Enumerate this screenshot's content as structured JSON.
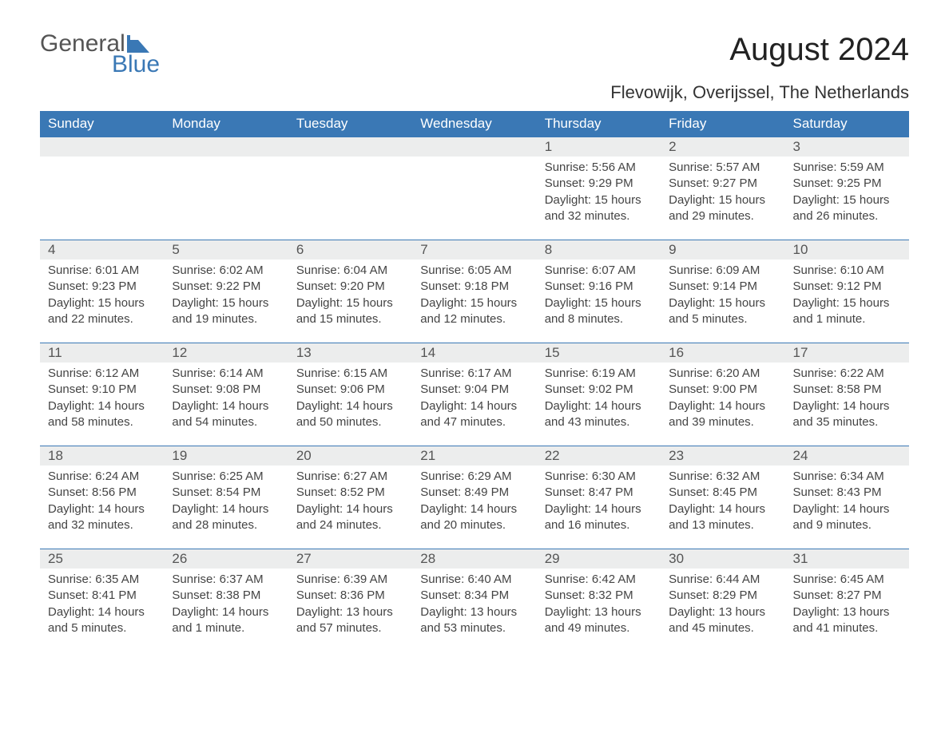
{
  "logo": {
    "word1": "General",
    "word2": "Blue",
    "accent_color": "#3a78b5"
  },
  "title": "August 2024",
  "location": "Flevowijk, Overijssel, The Netherlands",
  "colors": {
    "header_bg": "#3a78b5",
    "header_text": "#ffffff",
    "daynum_bg": "#eceded",
    "text": "#444444",
    "row_border": "#3a78b5"
  },
  "days_of_week": [
    "Sunday",
    "Monday",
    "Tuesday",
    "Wednesday",
    "Thursday",
    "Friday",
    "Saturday"
  ],
  "weeks": [
    [
      null,
      null,
      null,
      null,
      {
        "n": "1",
        "sunrise": "5:56 AM",
        "sunset": "9:29 PM",
        "daylight": "15 hours and 32 minutes."
      },
      {
        "n": "2",
        "sunrise": "5:57 AM",
        "sunset": "9:27 PM",
        "daylight": "15 hours and 29 minutes."
      },
      {
        "n": "3",
        "sunrise": "5:59 AM",
        "sunset": "9:25 PM",
        "daylight": "15 hours and 26 minutes."
      }
    ],
    [
      {
        "n": "4",
        "sunrise": "6:01 AM",
        "sunset": "9:23 PM",
        "daylight": "15 hours and 22 minutes."
      },
      {
        "n": "5",
        "sunrise": "6:02 AM",
        "sunset": "9:22 PM",
        "daylight": "15 hours and 19 minutes."
      },
      {
        "n": "6",
        "sunrise": "6:04 AM",
        "sunset": "9:20 PM",
        "daylight": "15 hours and 15 minutes."
      },
      {
        "n": "7",
        "sunrise": "6:05 AM",
        "sunset": "9:18 PM",
        "daylight": "15 hours and 12 minutes."
      },
      {
        "n": "8",
        "sunrise": "6:07 AM",
        "sunset": "9:16 PM",
        "daylight": "15 hours and 8 minutes."
      },
      {
        "n": "9",
        "sunrise": "6:09 AM",
        "sunset": "9:14 PM",
        "daylight": "15 hours and 5 minutes."
      },
      {
        "n": "10",
        "sunrise": "6:10 AM",
        "sunset": "9:12 PM",
        "daylight": "15 hours and 1 minute."
      }
    ],
    [
      {
        "n": "11",
        "sunrise": "6:12 AM",
        "sunset": "9:10 PM",
        "daylight": "14 hours and 58 minutes."
      },
      {
        "n": "12",
        "sunrise": "6:14 AM",
        "sunset": "9:08 PM",
        "daylight": "14 hours and 54 minutes."
      },
      {
        "n": "13",
        "sunrise": "6:15 AM",
        "sunset": "9:06 PM",
        "daylight": "14 hours and 50 minutes."
      },
      {
        "n": "14",
        "sunrise": "6:17 AM",
        "sunset": "9:04 PM",
        "daylight": "14 hours and 47 minutes."
      },
      {
        "n": "15",
        "sunrise": "6:19 AM",
        "sunset": "9:02 PM",
        "daylight": "14 hours and 43 minutes."
      },
      {
        "n": "16",
        "sunrise": "6:20 AM",
        "sunset": "9:00 PM",
        "daylight": "14 hours and 39 minutes."
      },
      {
        "n": "17",
        "sunrise": "6:22 AM",
        "sunset": "8:58 PM",
        "daylight": "14 hours and 35 minutes."
      }
    ],
    [
      {
        "n": "18",
        "sunrise": "6:24 AM",
        "sunset": "8:56 PM",
        "daylight": "14 hours and 32 minutes."
      },
      {
        "n": "19",
        "sunrise": "6:25 AM",
        "sunset": "8:54 PM",
        "daylight": "14 hours and 28 minutes."
      },
      {
        "n": "20",
        "sunrise": "6:27 AM",
        "sunset": "8:52 PM",
        "daylight": "14 hours and 24 minutes."
      },
      {
        "n": "21",
        "sunrise": "6:29 AM",
        "sunset": "8:49 PM",
        "daylight": "14 hours and 20 minutes."
      },
      {
        "n": "22",
        "sunrise": "6:30 AM",
        "sunset": "8:47 PM",
        "daylight": "14 hours and 16 minutes."
      },
      {
        "n": "23",
        "sunrise": "6:32 AM",
        "sunset": "8:45 PM",
        "daylight": "14 hours and 13 minutes."
      },
      {
        "n": "24",
        "sunrise": "6:34 AM",
        "sunset": "8:43 PM",
        "daylight": "14 hours and 9 minutes."
      }
    ],
    [
      {
        "n": "25",
        "sunrise": "6:35 AM",
        "sunset": "8:41 PM",
        "daylight": "14 hours and 5 minutes."
      },
      {
        "n": "26",
        "sunrise": "6:37 AM",
        "sunset": "8:38 PM",
        "daylight": "14 hours and 1 minute."
      },
      {
        "n": "27",
        "sunrise": "6:39 AM",
        "sunset": "8:36 PM",
        "daylight": "13 hours and 57 minutes."
      },
      {
        "n": "28",
        "sunrise": "6:40 AM",
        "sunset": "8:34 PM",
        "daylight": "13 hours and 53 minutes."
      },
      {
        "n": "29",
        "sunrise": "6:42 AM",
        "sunset": "8:32 PM",
        "daylight": "13 hours and 49 minutes."
      },
      {
        "n": "30",
        "sunrise": "6:44 AM",
        "sunset": "8:29 PM",
        "daylight": "13 hours and 45 minutes."
      },
      {
        "n": "31",
        "sunrise": "6:45 AM",
        "sunset": "8:27 PM",
        "daylight": "13 hours and 41 minutes."
      }
    ]
  ],
  "labels": {
    "sunrise": "Sunrise: ",
    "sunset": "Sunset: ",
    "daylight": "Daylight: "
  }
}
